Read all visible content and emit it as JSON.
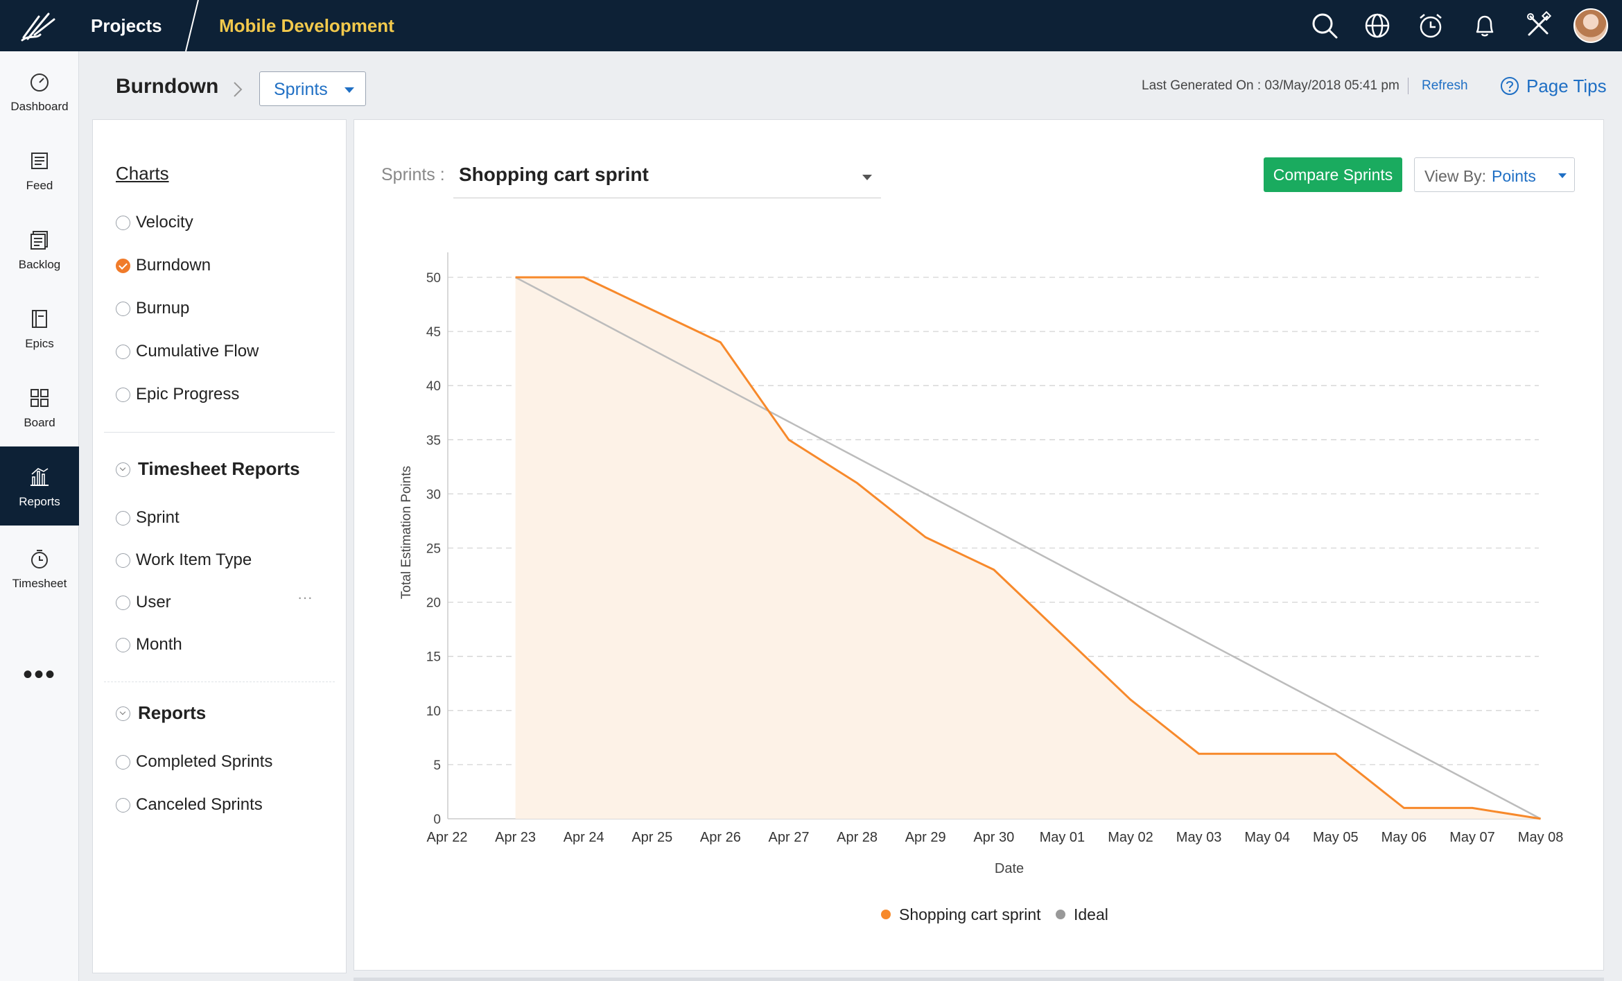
{
  "topbar": {
    "projects_label": "Projects",
    "project_name": "Mobile Development",
    "icons": [
      "search-icon",
      "globe-icon",
      "alarm-icon",
      "bell-icon",
      "tools-icon",
      "user-avatar"
    ]
  },
  "leftnav": {
    "items": [
      {
        "label": "Dashboard",
        "icon": "dashboard-icon"
      },
      {
        "label": "Feed",
        "icon": "feed-icon"
      },
      {
        "label": "Backlog",
        "icon": "backlog-icon"
      },
      {
        "label": "Epics",
        "icon": "epics-icon"
      },
      {
        "label": "Board",
        "icon": "board-icon"
      },
      {
        "label": "Reports",
        "icon": "reports-icon",
        "active": true
      },
      {
        "label": "Timesheet",
        "icon": "timesheet-icon"
      }
    ],
    "more": "•••"
  },
  "header": {
    "breadcrumb": "Burndown",
    "dropdown_value": "Sprints",
    "last_generated": "Last Generated On : 03/May/2018 05:41 pm",
    "refresh": "Refresh",
    "page_tips": "Page Tips"
  },
  "sidepanel": {
    "charts_title": "Charts",
    "charts": [
      "Velocity",
      "Burndown",
      "Burnup",
      "Cumulative Flow",
      "Epic Progress"
    ],
    "charts_selected": "Burndown",
    "timesheet_title": "Timesheet Reports",
    "timesheet": [
      "Sprint",
      "Work Item Type",
      "User",
      "Month"
    ],
    "reports_title": "Reports",
    "reports": [
      "Completed Sprints",
      "Canceled Sprints"
    ]
  },
  "main": {
    "sprint_label": "Sprints :",
    "sprint_value": "Shopping cart sprint",
    "compare_label": "Compare Sprints",
    "viewby_label": "View By:",
    "viewby_value": "Points"
  },
  "chart_data": {
    "type": "line",
    "x": [
      "Apr 22",
      "Apr 23",
      "Apr 24",
      "Apr 25",
      "Apr 26",
      "Apr 27",
      "Apr 28",
      "Apr 29",
      "Apr 30",
      "May 01",
      "May 02",
      "May 03",
      "May 04",
      "May 05",
      "May 06",
      "May 07",
      "May 08"
    ],
    "series": [
      {
        "name": "Shopping cart sprint",
        "color": "#f7892b",
        "area": true,
        "values": [
          null,
          50,
          50,
          47,
          44,
          35,
          31,
          26,
          23,
          17,
          11,
          6,
          6,
          6,
          1,
          1,
          0
        ]
      },
      {
        "name": "Ideal",
        "color": "#bcbcbc",
        "values": [
          null,
          50,
          46.67,
          43.33,
          40,
          36.67,
          33.33,
          30,
          26.67,
          23.33,
          20,
          16.67,
          13.33,
          10,
          6.67,
          3.33,
          0
        ]
      }
    ],
    "xlabel": "Date",
    "ylabel": "Total Estimation Points",
    "ylim": [
      0,
      50
    ],
    "yticks": [
      0,
      5,
      10,
      15,
      20,
      25,
      30,
      35,
      40,
      45,
      50
    ],
    "grid": true,
    "legend": "bottom-center",
    "area_color": "#fdf2e7"
  }
}
